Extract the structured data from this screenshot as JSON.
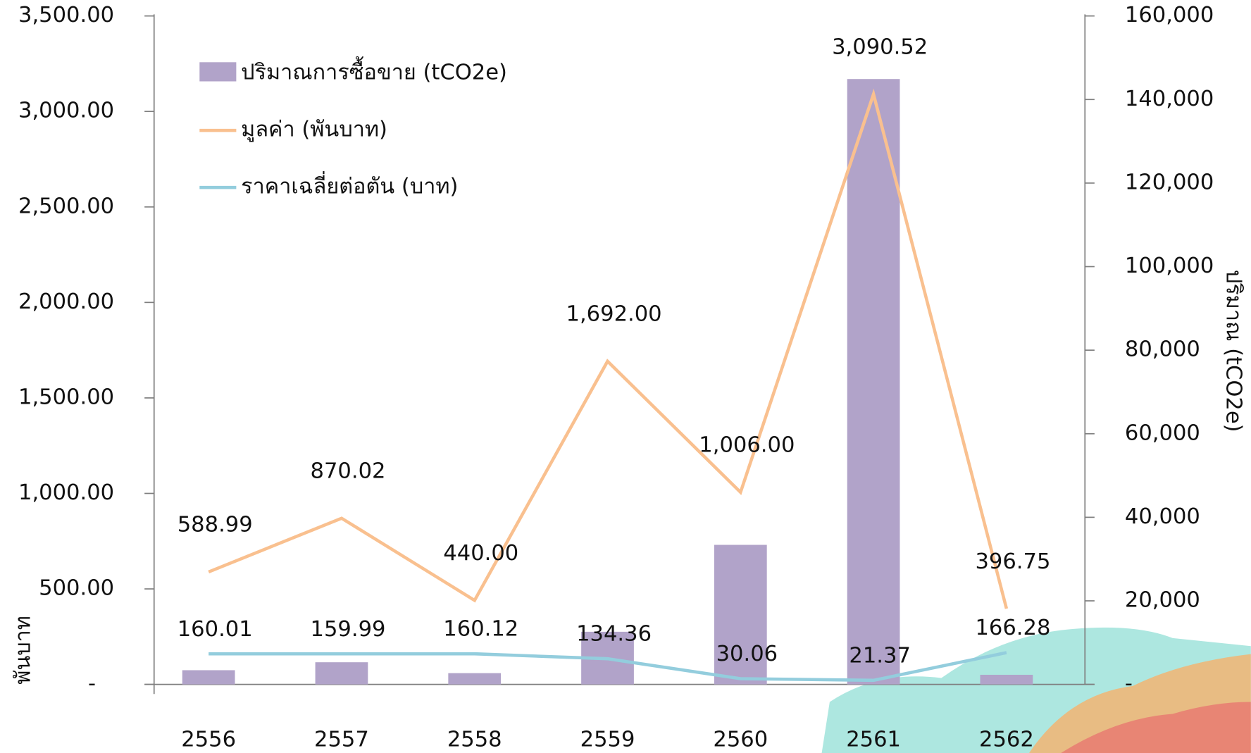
{
  "chart_data": {
    "type": "bar",
    "categories": [
      "2556",
      "2557",
      "2558",
      "2559",
      "2560",
      "2561",
      "2562"
    ],
    "series": [
      {
        "name": "ปริมาณการซื้อขาย (tCO2e)",
        "type": "bar",
        "axis": "y2",
        "color": "#b1a3c9",
        "values": [
          3400,
          5300,
          2700,
          12600,
          33400,
          144900,
          2300
        ]
      },
      {
        "name": "มูลค่า (พันบาท)",
        "type": "line",
        "axis": "y",
        "color": "#f9c08f",
        "values": [
          588.99,
          870.02,
          440.0,
          1692.0,
          1006.0,
          3090.52,
          396.75
        ],
        "value_labels": [
          "588.99",
          "870.02",
          "440.00",
          "1,692.00",
          "1,006.00",
          "3,090.52",
          "396.75"
        ]
      },
      {
        "name": "ราคาเฉลี่ยต่อตัน (บาท)",
        "type": "line",
        "axis": "y",
        "color": "#93cddd",
        "values": [
          160.01,
          159.99,
          160.12,
          134.36,
          30.06,
          21.37,
          166.28
        ],
        "value_labels": [
          "160.01",
          "159.99",
          "160.12",
          "134.36",
          "30.06",
          "21.37",
          "166.28"
        ]
      }
    ],
    "ylabel": "พันบาท",
    "y2label": "ปริมาณ (tCO2e)",
    "ylim": [
      0,
      3500
    ],
    "yticks": [
      {
        "value": 0,
        "label": "-"
      },
      {
        "value": 500,
        "label": "500.00"
      },
      {
        "value": 1000,
        "label": "1,000.00"
      },
      {
        "value": 1500,
        "label": "1,500.00"
      },
      {
        "value": 2000,
        "label": "2,000.00"
      },
      {
        "value": 2500,
        "label": "2,500.00"
      },
      {
        "value": 3000,
        "label": "3,000.00"
      },
      {
        "value": 3500,
        "label": "3,500.00"
      }
    ],
    "y2lim": [
      0,
      160000
    ],
    "y2ticks": [
      {
        "value": 0,
        "label": "-"
      },
      {
        "value": 20000,
        "label": "20,000"
      },
      {
        "value": 40000,
        "label": "40,000"
      },
      {
        "value": 60000,
        "label": "60,000"
      },
      {
        "value": 80000,
        "label": "80,000"
      },
      {
        "value": 100000,
        "label": "100,000"
      },
      {
        "value": 120000,
        "label": "120,000"
      },
      {
        "value": 140000,
        "label": "140,000"
      },
      {
        "value": 160000,
        "label": "160,000"
      }
    ],
    "grid": false
  }
}
